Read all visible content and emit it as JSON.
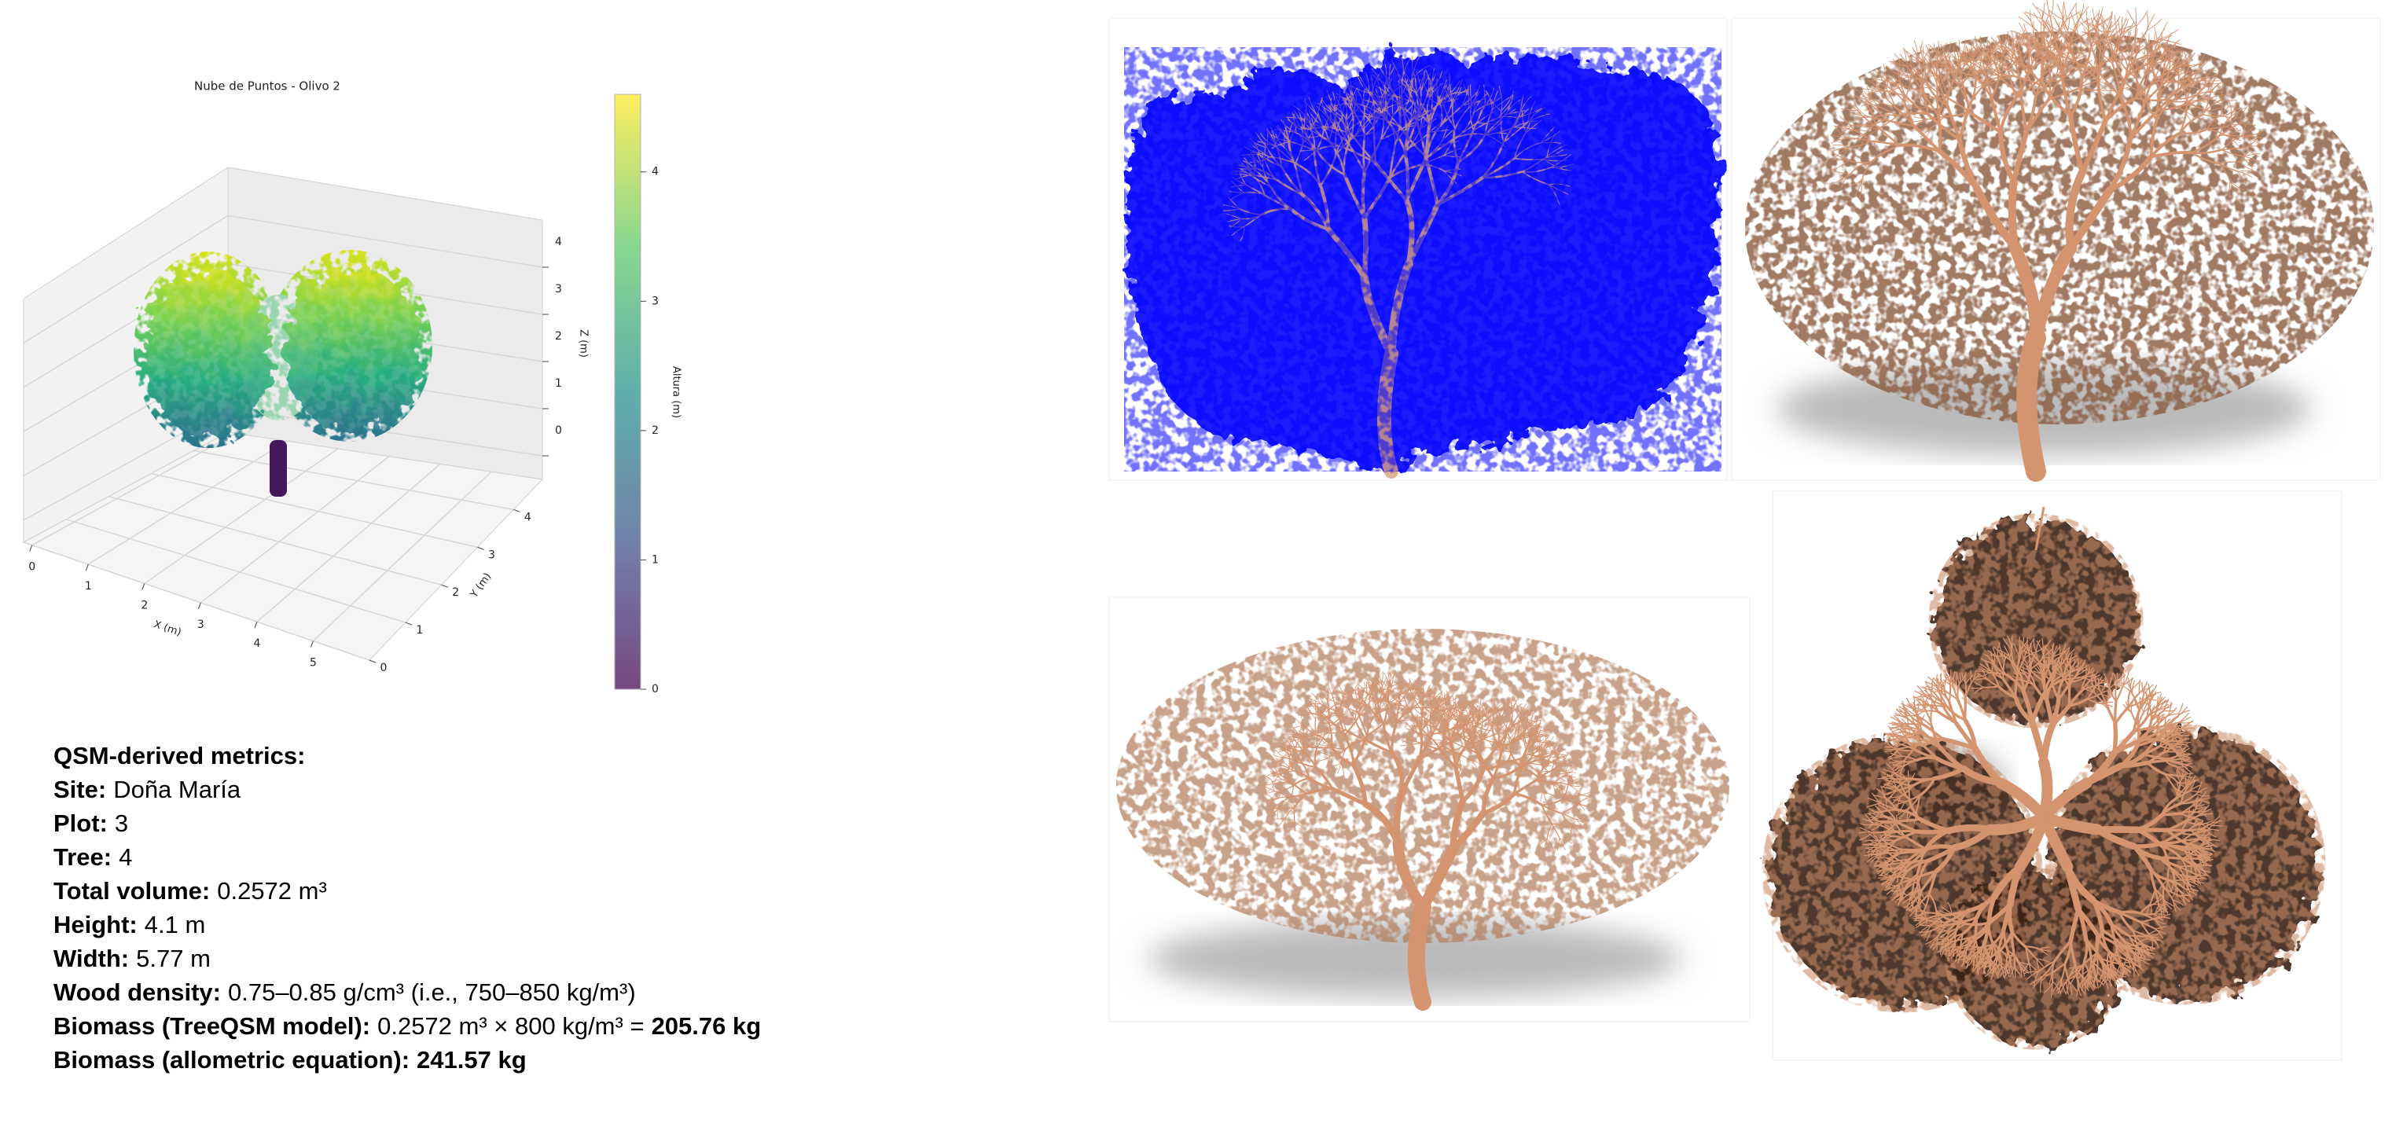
{
  "plot": {
    "title": "Nube de Puntos - Olivo 2",
    "x_label": "X (m)",
    "y_label": "Y (m)",
    "z_label": "Z (m)",
    "colorbar_label": "Altura (m)",
    "xlim": [
      -0.15,
      6.0
    ],
    "xticks": [
      0,
      1,
      2,
      3,
      4,
      5
    ],
    "ylim": [
      0,
      4.8
    ],
    "yticks": [
      0,
      1,
      2,
      3,
      4
    ],
    "zlim": [
      -0.5,
      5
    ],
    "zticks": [
      0,
      1,
      2,
      3,
      4
    ],
    "colorbar_lim": [
      0,
      4.6
    ],
    "colorbar_ticks": [
      0,
      1,
      2,
      3,
      4
    ]
  },
  "metrics": {
    "title": "QSM-derived metrics:",
    "items": [
      {
        "label": "Site:",
        "value": "Doña María"
      },
      {
        "label": "Plot:",
        "value": "3"
      },
      {
        "label": "Tree:",
        "value": "4"
      },
      {
        "label": "Total volume:",
        "value": "0.2572 m³"
      },
      {
        "label": "Height:",
        "value": "4.1 m"
      },
      {
        "label": "Width:",
        "value": "5.77 m"
      },
      {
        "label": "Wood density:",
        "value": "0.75–0.85 g/cm³ (i.e., 750–850 kg/m³)"
      },
      {
        "label": "Biomass (TreeQSM model):",
        "value": "0.2572 m³ × 800 kg/m³ =",
        "value_bold": "205.76 kg"
      },
      {
        "label": "Biomass (allometric equation):",
        "value_bold": "241.57 kg"
      }
    ]
  }
}
